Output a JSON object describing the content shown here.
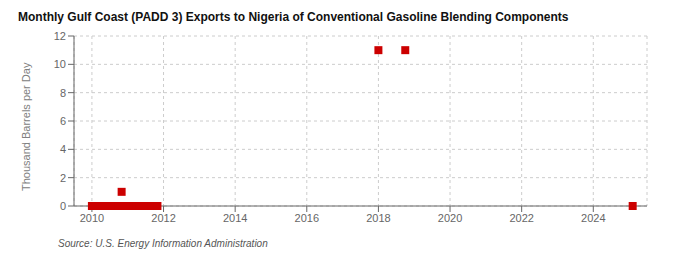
{
  "chart_data": {
    "type": "scatter",
    "title": "Monthly Gulf Coast (PADD 3) Exports to Nigeria of Conventional Gasoline Blending Components",
    "ylabel": "Thousand Barrels per Day",
    "source": "Source: U.S. Energy Information Administration",
    "color": "#cc0000",
    "marker": "square",
    "grid": true,
    "xlim": [
      2009.5,
      2025.5
    ],
    "xticks": [
      2010,
      2012,
      2014,
      2016,
      2018,
      2020,
      2022,
      2024
    ],
    "ylim": [
      0,
      12
    ],
    "yticks": [
      0,
      2,
      4,
      6,
      8,
      10,
      12
    ],
    "x": [
      2010.0,
      2010.08,
      2010.17,
      2010.25,
      2010.42,
      2010.5,
      2010.58,
      2010.67,
      2010.75,
      2010.83,
      2010.92,
      2011.0,
      2011.17,
      2011.25,
      2011.33,
      2011.5,
      2011.58,
      2011.67,
      2011.75,
      2011.83,
      2018.0,
      2018.75,
      2025.1
    ],
    "values": [
      0.0,
      0.0,
      0.0,
      0.0,
      0.0,
      0.0,
      0.0,
      0.0,
      0.0,
      1.0,
      0.0,
      0.0,
      0.0,
      0.0,
      0.0,
      0.0,
      0.0,
      0.0,
      0.0,
      0.0,
      11.0,
      11.0,
      0.0
    ]
  }
}
